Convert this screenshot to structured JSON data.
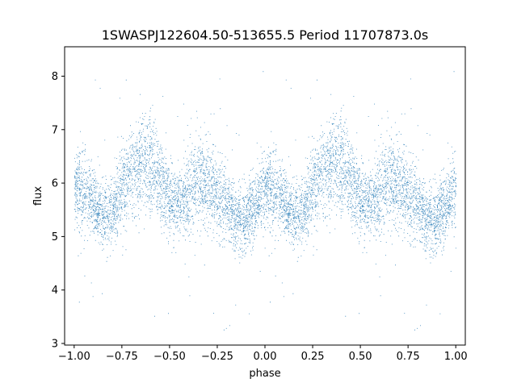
{
  "chart_data": {
    "type": "scatter",
    "title": "1SWASPJ122604.50-513655.5 Period 11707873.0s",
    "xlabel": "phase",
    "ylabel": "flux",
    "xlim": [
      -1.05,
      1.05
    ],
    "ylim": [
      2.97,
      8.55
    ],
    "xticks": [
      -1.0,
      -0.75,
      -0.5,
      -0.25,
      0.0,
      0.25,
      0.5,
      0.75,
      1.0
    ],
    "xtick_labels": [
      "−1.00",
      "−0.75",
      "−0.50",
      "−0.25",
      "0.00",
      "0.25",
      "0.50",
      "0.75",
      "1.00"
    ],
    "yticks": [
      3,
      4,
      5,
      6,
      7,
      8
    ],
    "ytick_labels": [
      "3",
      "4",
      "5",
      "6",
      "7",
      "8"
    ],
    "grid": false,
    "legend": "none",
    "point_color": "#1f77b4",
    "series": [
      {
        "name": "",
        "description_of_trend": "folded light curve, dense cloud of points; mean flux vs phase sampled below (pattern repeats every 1.0 in phase)",
        "phase": [
          0.0,
          0.05,
          0.1,
          0.15,
          0.2,
          0.25,
          0.3,
          0.35,
          0.4,
          0.45,
          0.5,
          0.55,
          0.6,
          0.65,
          0.7,
          0.75,
          0.8,
          0.85,
          0.9,
          0.95,
          1.0
        ],
        "mean_flux": [
          5.9,
          5.9,
          5.6,
          5.4,
          5.5,
          5.9,
          6.2,
          6.3,
          6.3,
          6.0,
          5.7,
          5.6,
          5.8,
          6.1,
          6.0,
          5.8,
          5.6,
          5.3,
          5.3,
          5.6,
          5.9
        ],
        "spread": [
          0.45,
          0.5,
          0.4,
          0.4,
          0.45,
          0.5,
          0.55,
          0.6,
          0.6,
          0.5,
          0.45,
          0.45,
          0.5,
          0.55,
          0.5,
          0.5,
          0.45,
          0.4,
          0.4,
          0.45,
          0.45
        ],
        "n_points_per_cycle": 5200,
        "outlier_range": [
          3.2,
          8.3
        ]
      }
    ]
  }
}
